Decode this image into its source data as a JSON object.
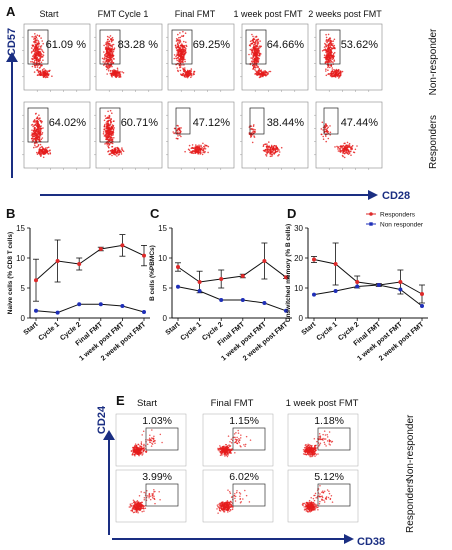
{
  "panel_A": {
    "letter": "A",
    "timepoints": [
      "Start",
      "FMT Cycle 1",
      "Final FMT",
      "1 week post FMT",
      "2 weeks post  FMT"
    ],
    "row_labels": [
      "Non-responder",
      "Responders"
    ],
    "y_marker": "CD57",
    "x_marker": "CD28",
    "percent_labels": [
      [
        "61.09 %",
        "83.28 %",
        "69.25%",
        "64.66%",
        "53.62%"
      ],
      [
        "64.02%",
        "60.71%",
        "47.12%",
        "38.44%",
        "47.44%"
      ]
    ],
    "percent_values": [
      [
        61.09,
        83.28,
        69.25,
        64.66,
        53.62
      ],
      [
        64.02,
        60.71,
        47.12,
        38.44,
        47.44
      ]
    ]
  },
  "panel_E": {
    "letter": "E",
    "timepoints": [
      "Start",
      "Final FMT",
      "1 week post FMT"
    ],
    "row_labels": [
      "Non-responder",
      "Responders"
    ],
    "y_marker": "CD24",
    "x_marker": "CD38",
    "percent_labels": [
      [
        "1.03%",
        "1.15%",
        "1.18%"
      ],
      [
        "3.99%",
        "6.02%",
        "5.12%"
      ]
    ],
    "percent_values": [
      [
        1.03,
        1.15,
        1.18
      ],
      [
        3.99,
        6.02,
        5.12
      ]
    ]
  },
  "legend": {
    "responders": "Responders",
    "non_responder": "Non responder"
  },
  "colors": {
    "responders": "#dd2a2a",
    "non_responder": "#1f2fb8",
    "dots": "#e51c1c",
    "axis_arrow": "#1a2e82",
    "line_black": "#111111"
  },
  "chart_data": [
    {
      "type": "line",
      "letter": "B",
      "ylabel": "Naive cells (% CD8 T cells)",
      "categories": [
        "Start",
        "Cycle 1",
        "Cycle 2",
        "Final FMT",
        "1 week post FMT",
        "2 week post FMT"
      ],
      "ylim": [
        0,
        15
      ],
      "yticks": [
        0,
        5,
        10,
        15
      ],
      "series": [
        {
          "name": "Responders",
          "values": [
            6.3,
            9.5,
            9.0,
            11.5,
            12.1,
            10.4
          ],
          "err": [
            3.5,
            3.5,
            1.0,
            0.3,
            1.8,
            1.7
          ]
        },
        {
          "name": "Non responder",
          "values": [
            1.2,
            0.9,
            2.3,
            2.3,
            2.0,
            1.0
          ],
          "err": [
            0,
            0,
            0,
            0,
            0,
            0
          ]
        }
      ]
    },
    {
      "type": "line",
      "letter": "C",
      "ylabel": "B cells (%PBMCs)",
      "categories": [
        "Start",
        "Cycle 1",
        "Cycle 2",
        "Final FMT",
        "1 week post FMT",
        "2 week post FMT"
      ],
      "ylim": [
        0,
        15
      ],
      "yticks": [
        0,
        5,
        10,
        15
      ],
      "series": [
        {
          "name": "Responders",
          "values": [
            8.5,
            6.0,
            6.5,
            7.0,
            9.5,
            6.8
          ],
          "err": [
            0.7,
            1.8,
            1.5,
            0.3,
            3.0,
            0.2
          ]
        },
        {
          "name": "Non responder",
          "values": [
            5.2,
            4.5,
            3.0,
            3.0,
            2.5,
            1.2
          ],
          "err": [
            0,
            0,
            0,
            0,
            0,
            0
          ]
        }
      ]
    },
    {
      "type": "line",
      "letter": "D",
      "ylabel": "Unswitched memory (% B cells)",
      "categories": [
        "Start",
        "Cycle 1",
        "Cycle 2",
        "Final FMT",
        "1 week post FMT",
        "2 week post FMT"
      ],
      "ylim": [
        0,
        30
      ],
      "yticks": [
        0,
        10,
        20,
        30
      ],
      "series": [
        {
          "name": "Responders",
          "values": [
            19.5,
            18.0,
            12.0,
            11.0,
            12.0,
            8.0
          ],
          "err": [
            1.0,
            7.0,
            2.0,
            0.5,
            4.0,
            3.0
          ]
        },
        {
          "name": "Non responder",
          "values": [
            7.8,
            9.0,
            10.5,
            11.0,
            9.5,
            4.0
          ],
          "err": [
            0,
            0,
            0,
            0,
            0,
            0
          ]
        }
      ]
    }
  ]
}
